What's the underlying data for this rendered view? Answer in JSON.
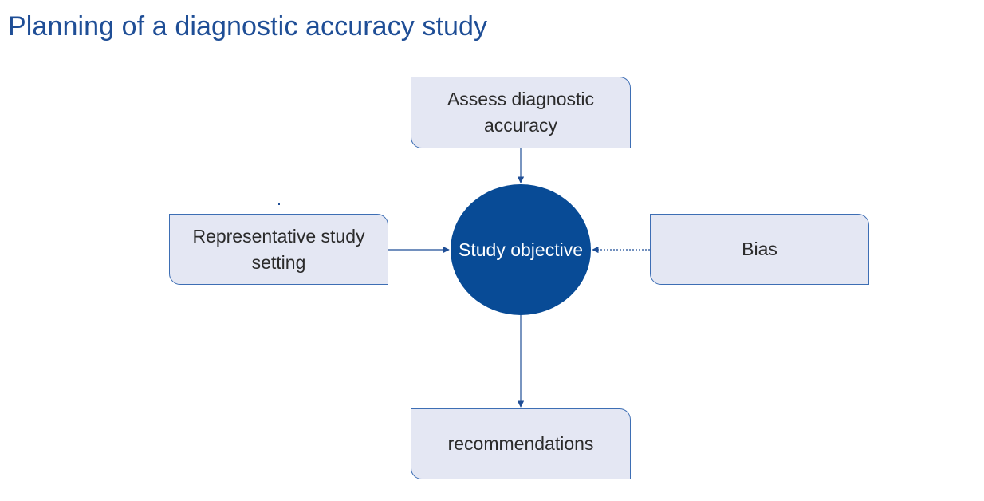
{
  "title": "Planning of a diagnostic accuracy study",
  "center": {
    "label": "Study objective"
  },
  "nodes": {
    "top": {
      "label": "Assess diagnostic accuracy"
    },
    "left": {
      "label": "Representative study setting"
    },
    "right": {
      "label": "Bias"
    },
    "bottom": {
      "label": "recommendations"
    }
  },
  "edges": [
    {
      "from": "Assess diagnostic accuracy",
      "to": "Study objective",
      "style": "solid"
    },
    {
      "from": "Representative study setting",
      "to": "Study objective",
      "style": "solid"
    },
    {
      "from": "Bias",
      "to": "Study objective",
      "style": "dotted"
    },
    {
      "from": "Study objective",
      "to": "recommendations",
      "style": "solid"
    }
  ],
  "colors": {
    "title": "#1f4e96",
    "circle_fill": "#084b96",
    "box_fill": "#e4e7f3",
    "box_border": "#3d6eb4",
    "arrow": "#1f4e96"
  }
}
